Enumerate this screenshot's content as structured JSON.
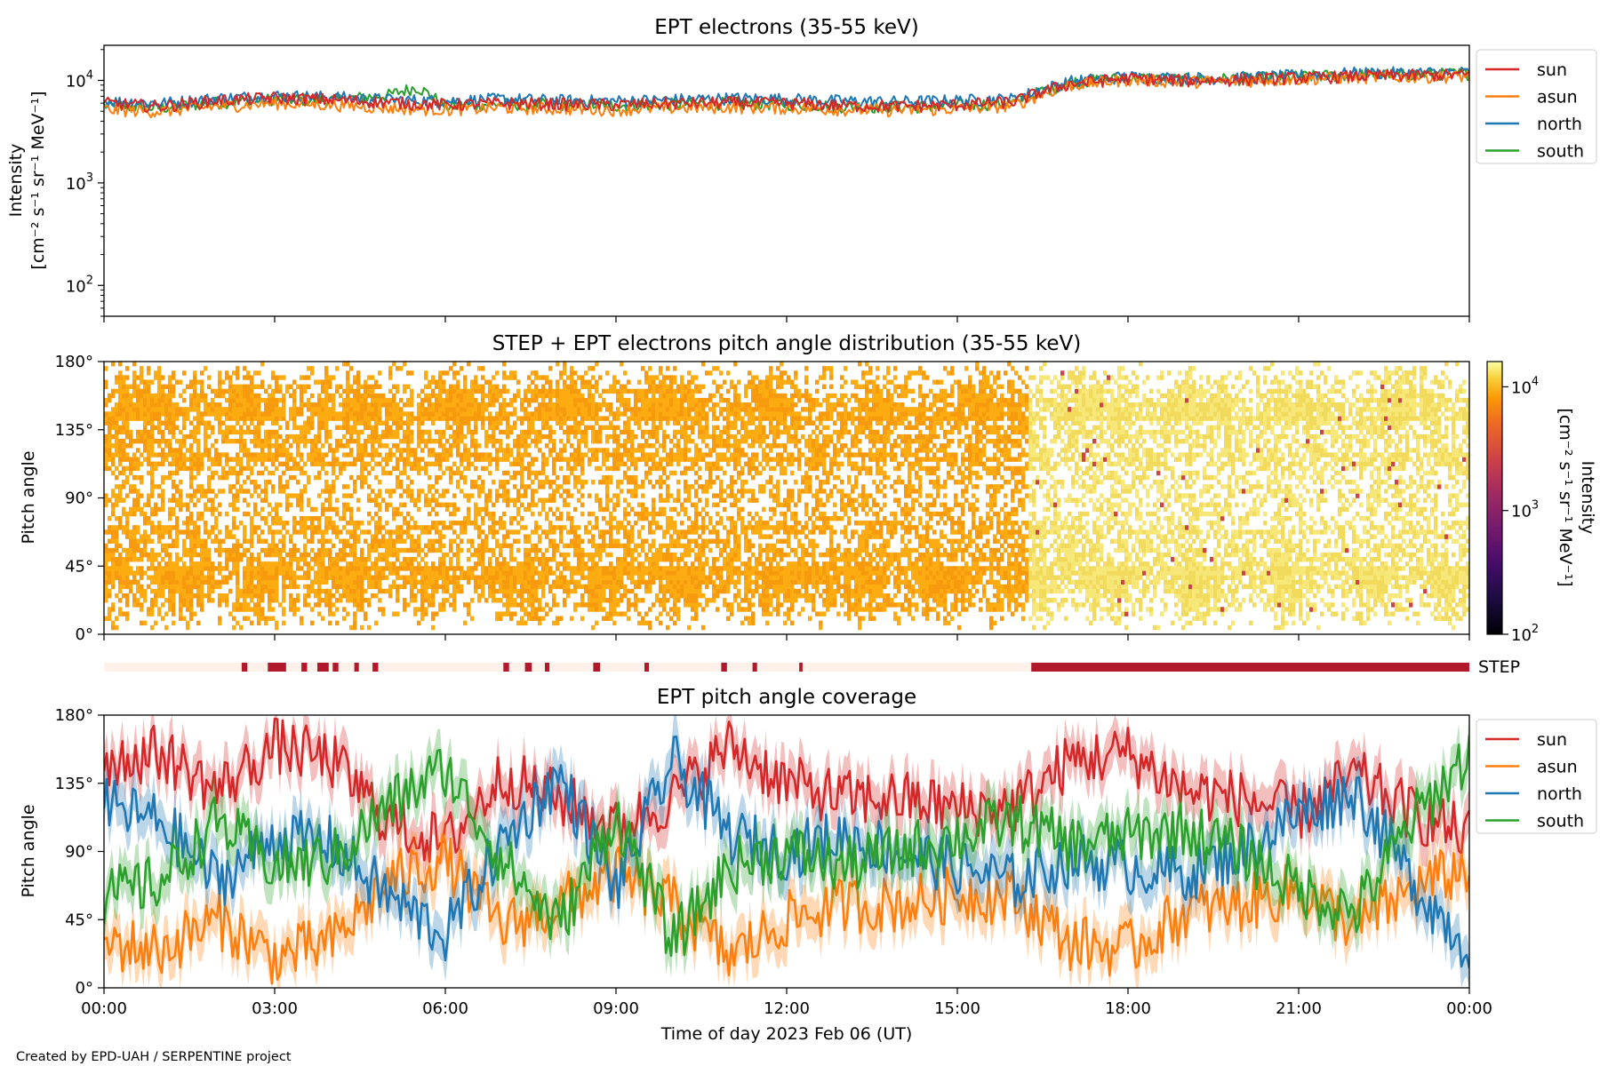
{
  "figure": {
    "credit": "Created by EPD-UAH / SERPENTINE project",
    "xlabel": "Time of day 2023 Feb 06 (UT)",
    "x_ticks": [
      "00:00",
      "03:00",
      "06:00",
      "09:00",
      "12:00",
      "15:00",
      "18:00",
      "21:00",
      "00:00"
    ]
  },
  "colors": {
    "sun": "#d62728",
    "asun": "#ff7f0e",
    "north": "#1f77b4",
    "south": "#2ca02c",
    "step_bar": "#b2182b",
    "step_bar_empty": "#fdf1ea"
  },
  "chart_data": [
    {
      "type": "line",
      "title": "EPT electrons (35-55 keV)",
      "ylabel_line1": "Intensity",
      "ylabel_line2": "[cm⁻² s⁻¹ sr⁻¹ MeV⁻¹]",
      "yscale": "log",
      "ylim": [
        50,
        22000
      ],
      "y_ticks": [
        {
          "value": 100,
          "base": "10",
          "exp": "2"
        },
        {
          "value": 1000,
          "base": "10",
          "exp": "3"
        },
        {
          "value": 10000,
          "base": "10",
          "exp": "4"
        }
      ],
      "xlim_hours": [
        0,
        24
      ],
      "legend_position": "outside-right-top",
      "series": [
        {
          "name": "sun",
          "color": "#d62728",
          "points": [
            [
              0,
              6000
            ],
            [
              1,
              5600
            ],
            [
              2,
              6400
            ],
            [
              3,
              6800
            ],
            [
              4,
              6500
            ],
            [
              5,
              6100
            ],
            [
              6,
              5800
            ],
            [
              7,
              6000
            ],
            [
              8,
              5900
            ],
            [
              9,
              5800
            ],
            [
              10,
              6000
            ],
            [
              11,
              6100
            ],
            [
              12,
              6000
            ],
            [
              13,
              5700
            ],
            [
              14,
              5600
            ],
            [
              15,
              5800
            ],
            [
              16,
              6200
            ],
            [
              16.5,
              7800
            ],
            [
              17,
              9300
            ],
            [
              18,
              10500
            ],
            [
              19,
              10000
            ],
            [
              20,
              10200
            ],
            [
              21,
              10600
            ],
            [
              22,
              11000
            ],
            [
              23,
              11200
            ],
            [
              24,
              11400
            ]
          ]
        },
        {
          "name": "asun",
          "color": "#ff7f0e",
          "points": [
            [
              0,
              5200
            ],
            [
              1,
              5000
            ],
            [
              2,
              5600
            ],
            [
              3,
              6000
            ],
            [
              4,
              5800
            ],
            [
              5,
              5400
            ],
            [
              6,
              5200
            ],
            [
              7,
              5400
            ],
            [
              8,
              5300
            ],
            [
              9,
              5200
            ],
            [
              10,
              5400
            ],
            [
              11,
              5500
            ],
            [
              12,
              5400
            ],
            [
              13,
              5200
            ],
            [
              14,
              5100
            ],
            [
              15,
              5300
            ],
            [
              16,
              5700
            ],
            [
              16.5,
              7400
            ],
            [
              17,
              9000
            ],
            [
              18,
              10200
            ],
            [
              19,
              9700
            ],
            [
              20,
              9900
            ],
            [
              21,
              10300
            ],
            [
              22,
              10700
            ],
            [
              23,
              10900
            ],
            [
              24,
              11000
            ]
          ]
        },
        {
          "name": "north",
          "color": "#1f77b4",
          "points": [
            [
              0,
              6300
            ],
            [
              1,
              6000
            ],
            [
              2,
              6700
            ],
            [
              3,
              7100
            ],
            [
              4,
              6900
            ],
            [
              5,
              6500
            ],
            [
              6,
              6300
            ],
            [
              7,
              6600
            ],
            [
              8,
              6400
            ],
            [
              9,
              6300
            ],
            [
              10,
              6500
            ],
            [
              11,
              6700
            ],
            [
              12,
              6600
            ],
            [
              13,
              6300
            ],
            [
              14,
              6200
            ],
            [
              15,
              6400
            ],
            [
              16,
              6600
            ],
            [
              16.5,
              8200
            ],
            [
              17,
              9800
            ],
            [
              18,
              10900
            ],
            [
              19,
              10500
            ],
            [
              20,
              10700
            ],
            [
              21,
              11200
            ],
            [
              22,
              11800
            ],
            [
              23,
              11900
            ],
            [
              24,
              12000
            ]
          ]
        },
        {
          "name": "south",
          "color": "#2ca02c",
          "points": [
            [
              0,
              5700
            ],
            [
              1,
              5400
            ],
            [
              2,
              6100
            ],
            [
              3,
              6600
            ],
            [
              4,
              6400
            ],
            [
              5,
              7200
            ],
            [
              5.5,
              8600
            ],
            [
              6,
              5600
            ],
            [
              7,
              5900
            ],
            [
              8,
              5800
            ],
            [
              9,
              5700
            ],
            [
              10,
              5900
            ],
            [
              11,
              6000
            ],
            [
              12,
              5900
            ],
            [
              13,
              5600
            ],
            [
              14,
              5500
            ],
            [
              15,
              5700
            ],
            [
              16,
              6100
            ],
            [
              16.5,
              7900
            ],
            [
              17,
              9600
            ],
            [
              18,
              10600
            ],
            [
              19,
              10200
            ],
            [
              20,
              10400
            ],
            [
              21,
              10900
            ],
            [
              22,
              11400
            ],
            [
              23,
              11500
            ],
            [
              24,
              11700
            ]
          ]
        }
      ]
    },
    {
      "type": "heatmap",
      "title": "STEP + EPT electrons pitch angle distribution (35-55 keV)",
      "ylabel": "Pitch angle",
      "ylim": [
        0,
        180
      ],
      "y_ticks": [
        "0°",
        "45°",
        "90°",
        "135°",
        "180°"
      ],
      "xlim_hours": [
        0,
        24
      ],
      "colorbar": {
        "label_line1": "Intensity",
        "label_line2": "[cm⁻² s⁻¹ sr⁻¹ MeV⁻¹]",
        "scale": "log",
        "range": [
          100,
          16000
        ],
        "colormap": "inferno",
        "ticks": [
          {
            "value": 100,
            "base": "10",
            "exp": "2"
          },
          {
            "value": 1000,
            "base": "10",
            "exp": "3"
          },
          {
            "value": 10000,
            "base": "10",
            "exp": "4"
          }
        ]
      },
      "intensity_segments": [
        {
          "from_hour": 0,
          "to_hour": 16.2,
          "intensity": 5500
        },
        {
          "from_hour": 16.2,
          "to_hour": 24,
          "intensity": 11500
        }
      ]
    },
    {
      "type": "bar",
      "label": "STEP",
      "description_values": "STEP data availability intervals (hours)",
      "intervals_hours": [
        [
          2.42,
          2.52
        ],
        [
          2.88,
          3.2
        ],
        [
          3.47,
          3.57
        ],
        [
          3.75,
          3.95
        ],
        [
          4.02,
          4.12
        ],
        [
          4.4,
          4.48
        ],
        [
          4.72,
          4.82
        ],
        [
          7.02,
          7.12
        ],
        [
          7.4,
          7.52
        ],
        [
          7.75,
          7.83
        ],
        [
          8.6,
          8.72
        ],
        [
          9.5,
          9.58
        ],
        [
          10.85,
          10.95
        ],
        [
          11.4,
          11.48
        ],
        [
          12.22,
          12.28
        ],
        [
          16.3,
          24
        ]
      ]
    },
    {
      "type": "line",
      "title": "EPT pitch angle coverage",
      "ylabel": "Pitch angle",
      "ylim": [
        0,
        180
      ],
      "y_ticks": [
        "0°",
        "45°",
        "90°",
        "135°",
        "180°"
      ],
      "xlim_hours": [
        0,
        24
      ],
      "legend_position": "outside-right-top",
      "band": "shaded min-max range around each line",
      "series": [
        {
          "name": "sun",
          "color": "#d62728",
          "points": [
            [
              0,
              150
            ],
            [
              1,
              155
            ],
            [
              2,
              130
            ],
            [
              3,
              160
            ],
            [
              4,
              150
            ],
            [
              5,
              110
            ],
            [
              6,
              95
            ],
            [
              7,
              140
            ],
            [
              8,
              125
            ],
            [
              9,
              105
            ],
            [
              10,
              125
            ],
            [
              11,
              160
            ],
            [
              12,
              135
            ],
            [
              13,
              125
            ],
            [
              14,
              125
            ],
            [
              15,
              118
            ],
            [
              16,
              120
            ],
            [
              17,
              150
            ],
            [
              18,
              155
            ],
            [
              19,
              130
            ],
            [
              20,
              125
            ],
            [
              21,
              115
            ],
            [
              22,
              140
            ],
            [
              23,
              115
            ],
            [
              24,
              100
            ]
          ]
        },
        {
          "name": "asun",
          "color": "#ff7f0e",
          "points": [
            [
              0,
              30
            ],
            [
              1,
              25
            ],
            [
              2,
              45
            ],
            [
              3,
              20
            ],
            [
              4,
              30
            ],
            [
              5,
              70
            ],
            [
              6,
              85
            ],
            [
              7,
              40
            ],
            [
              8,
              55
            ],
            [
              9,
              75
            ],
            [
              10,
              55
            ],
            [
              11,
              20
            ],
            [
              12,
              45
            ],
            [
              13,
              55
            ],
            [
              14,
              55
            ],
            [
              15,
              62
            ],
            [
              16,
              60
            ],
            [
              17,
              30
            ],
            [
              18,
              25
            ],
            [
              19,
              50
            ],
            [
              20,
              55
            ],
            [
              21,
              65
            ],
            [
              22,
              40
            ],
            [
              23,
              65
            ],
            [
              24,
              80
            ]
          ]
        },
        {
          "name": "north",
          "color": "#1f77b4",
          "points": [
            [
              0,
              120
            ],
            [
              1,
              110
            ],
            [
              2,
              70
            ],
            [
              3,
              100
            ],
            [
              4,
              95
            ],
            [
              5,
              60
            ],
            [
              6,
              35
            ],
            [
              7,
              95
            ],
            [
              8,
              140
            ],
            [
              9,
              65
            ],
            [
              10,
              150
            ],
            [
              11,
              100
            ],
            [
              12,
              90
            ],
            [
              13,
              100
            ],
            [
              14,
              90
            ],
            [
              15,
              80
            ],
            [
              16,
              70
            ],
            [
              17,
              85
            ],
            [
              18,
              80
            ],
            [
              19,
              75
            ],
            [
              20,
              90
            ],
            [
              21,
              115
            ],
            [
              22,
              130
            ],
            [
              23,
              70
            ],
            [
              24,
              25
            ]
          ]
        },
        {
          "name": "south",
          "color": "#2ca02c",
          "points": [
            [
              0,
              60
            ],
            [
              1,
              70
            ],
            [
              2,
              110
            ],
            [
              3,
              80
            ],
            [
              4,
              85
            ],
            [
              5,
              120
            ],
            [
              6,
              145
            ],
            [
              7,
              85
            ],
            [
              8,
              40
            ],
            [
              9,
              115
            ],
            [
              10,
              30
            ],
            [
              11,
              80
            ],
            [
              12,
              90
            ],
            [
              13,
              80
            ],
            [
              14,
              90
            ],
            [
              15,
              100
            ],
            [
              16,
              110
            ],
            [
              17,
              95
            ],
            [
              18,
              100
            ],
            [
              19,
              105
            ],
            [
              20,
              90
            ],
            [
              21,
              65
            ],
            [
              22,
              50
            ],
            [
              23,
              110
            ],
            [
              24,
              155
            ]
          ]
        }
      ]
    }
  ]
}
